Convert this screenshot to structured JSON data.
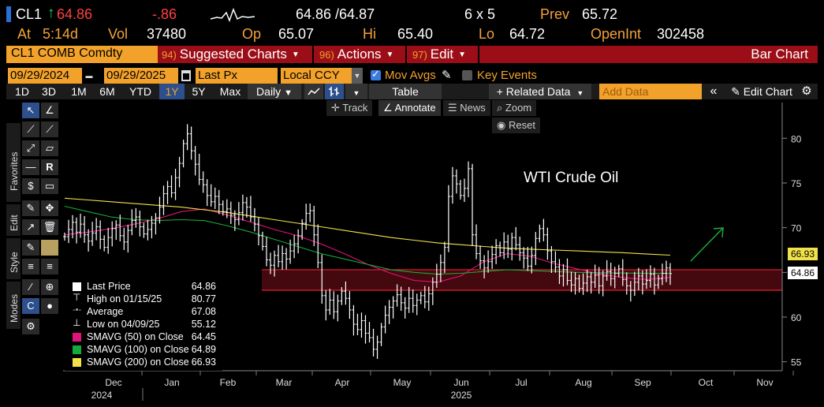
{
  "quote": {
    "ticker": "CL1",
    "up_arrow": "↑",
    "last": "64.86",
    "change": "-.86",
    "bid_ask": "64.86 /64.87",
    "size": "6 x 5",
    "prev_label": "Prev",
    "prev": "65.72",
    "at_label": "At",
    "at_time": "5:14d",
    "vol_label": "Vol",
    "vol": "37480",
    "op_label": "Op",
    "op": "65.07",
    "hi_label": "Hi",
    "hi": "65.40",
    "lo_label": "Lo",
    "lo": "64.72",
    "oi_label": "OpenInt",
    "oi": "302458"
  },
  "cmdbar": {
    "security": "CL1 COMB Comdty",
    "menus": [
      {
        "num": "94)",
        "label": "Suggested Charts"
      },
      {
        "num": "96)",
        "label": "Actions"
      },
      {
        "num": "97)",
        "label": "Edit"
      }
    ],
    "chart_type": "Bar Chart"
  },
  "datebar": {
    "start_date": "09/29/2024",
    "end_date": "09/29/2025",
    "field": "Last Px",
    "currency": "Local CCY",
    "mov_avgs_label": "Mov Avgs",
    "key_events_label": "Key Events"
  },
  "periods": {
    "items": [
      "1D",
      "3D",
      "1M",
      "6M",
      "YTD",
      "1Y",
      "5Y",
      "Max"
    ],
    "selected": "1Y",
    "frequency": "Daily",
    "table_label": "Table",
    "related_label": "+ Related Data",
    "add_data_placeholder": "Add Data",
    "edit_chart_label": "Edit Chart"
  },
  "sidebar_tabs": [
    "Favorites",
    "Edit",
    "Style",
    "Modes"
  ],
  "chart_tools": {
    "track": "Track",
    "annotate": "Annotate",
    "news": "News",
    "zoom": "Zoom",
    "reset": "Reset"
  },
  "legend": {
    "items": [
      {
        "label": "Last Price",
        "value": "64.86",
        "color": "#ffffff"
      },
      {
        "label": "High on 01/15/25",
        "value": "80.77",
        "color": "#ffffff"
      },
      {
        "label": "Average",
        "value": "67.08",
        "color": "#ffffff"
      },
      {
        "label": "Low on 04/09/25",
        "value": "55.12",
        "color": "#ffffff"
      },
      {
        "label": "SMAVG (50)  on Close",
        "value": "64.45",
        "color": "#e0147a"
      },
      {
        "label": "SMAVG (100)  on Close",
        "value": "64.89",
        "color": "#17a83b"
      },
      {
        "label": "SMAVG (200)  on Close",
        "value": "66.93",
        "color": "#f2e24a"
      }
    ]
  },
  "price_tags": {
    "sma200": "66.93",
    "last": "64.86"
  },
  "colors": {
    "orange": "#f2a22a",
    "red_bar": "#9b0e17",
    "price_bars": "#ffffff",
    "sma50": "#e0147a",
    "sma100": "#17a83b",
    "sma200": "#f2e24a",
    "zone_fill": "#4a0a10",
    "zone_line": "#e02030",
    "arrow": "#1bb33a"
  },
  "chart_data": {
    "type": "bar",
    "annotation_text": "WTI Crude Oil",
    "y_ticks": [
      "55",
      "60",
      "65",
      "70",
      "75",
      "80"
    ],
    "ylim": [
      54.0,
      84.0
    ],
    "x_month_labels": [
      "Dec",
      "Jan",
      "Feb",
      "Mar",
      "Apr",
      "May",
      "Jun",
      "Jul",
      "Aug",
      "Sep",
      "Oct",
      "Nov"
    ],
    "x_year_labels": [
      "2024",
      "2025"
    ],
    "zone": {
      "low": 63.0,
      "high": 65.3
    },
    "series": [
      {
        "name": "Last Price",
        "close": [
          69.0,
          69.8,
          70.6,
          69.5,
          70.4,
          69.2,
          68.5,
          69.4,
          70.1,
          68.7,
          67.8,
          68.9,
          69.9,
          70.3,
          69.1,
          68.4,
          69.7,
          70.8,
          71.2,
          70.1,
          69.3,
          69.8,
          70.5,
          71.1,
          72.3,
          73.8,
          74.6,
          73.9,
          75.6,
          77.2,
          79.4,
          80.5,
          78.6,
          77.1,
          75.4,
          74.8,
          73.6,
          72.9,
          73.5,
          72.6,
          71.8,
          72.1,
          71.4,
          70.9,
          71.7,
          72.8,
          72.3,
          71.2,
          70.4,
          69.1,
          67.9,
          66.4,
          65.8,
          66.9,
          66.2,
          67.1,
          66.5,
          67.4,
          68.2,
          69.1,
          70.5,
          71.6,
          71.9,
          69.2,
          66.1,
          62.4,
          60.8,
          61.9,
          60.6,
          61.8,
          62.9,
          62.1,
          60.8,
          59.2,
          58.6,
          59.6,
          58.2,
          57.7,
          56.4,
          57.2,
          58.9,
          60.2,
          61.1,
          61.8,
          62.5,
          61.6,
          61.0,
          62.1,
          61.3,
          61.9,
          62.4,
          61.7,
          62.6,
          63.9,
          64.8,
          66.1,
          67.8,
          73.5,
          75.8,
          74.9,
          73.6,
          74.4,
          76.6,
          69.2,
          67.1,
          66.3,
          65.5,
          66.2,
          67.0,
          68.0,
          67.2,
          68.4,
          67.6,
          68.9,
          68.1,
          67.2,
          66.6,
          65.7,
          66.9,
          68.8,
          69.9,
          69.2,
          67.4,
          66.2,
          65.6,
          64.6,
          65.3,
          64.1,
          63.6,
          64.3,
          63.2,
          63.8,
          64.5,
          63.9,
          64.7,
          63.5,
          64.6,
          65.1,
          64.3,
          64.9,
          65.4,
          64.2,
          63.5,
          63.0,
          63.9,
          64.6,
          63.7,
          64.1,
          64.8,
          63.6,
          64.3,
          64.9,
          65.5,
          64.86
        ]
      },
      {
        "name": "SMAVG (50) on Close",
        "values": [
          69.2,
          69.5,
          69.9,
          70.4,
          71.0,
          71.8,
          72.1,
          71.4,
          70.6,
          69.8,
          69.1,
          68.2,
          67.1,
          65.9,
          64.9,
          64.1,
          63.9,
          64.6,
          66.2,
          67.1,
          66.8,
          66.0,
          65.4,
          64.8,
          64.4,
          64.2,
          64.45
        ]
      },
      {
        "name": "SMAVG (100) on Close",
        "values": [
          72.4,
          71.8,
          71.2,
          70.9,
          70.8,
          70.9,
          70.8,
          70.2,
          69.5,
          68.7,
          67.9,
          67.1,
          66.5,
          65.9,
          65.3,
          65.0,
          64.8,
          64.9,
          65.1,
          65.3,
          65.2,
          65.1,
          65.0,
          64.95,
          64.92,
          64.9,
          64.89
        ]
      },
      {
        "name": "SMAVG (200) on Close",
        "values": [
          73.3,
          73.1,
          72.9,
          72.7,
          72.5,
          72.3,
          72.0,
          71.7,
          71.3,
          70.9,
          70.5,
          70.1,
          69.7,
          69.3,
          68.9,
          68.6,
          68.3,
          68.1,
          67.9,
          67.7,
          67.6,
          67.5,
          67.4,
          67.3,
          67.2,
          67.05,
          66.93
        ]
      }
    ]
  }
}
